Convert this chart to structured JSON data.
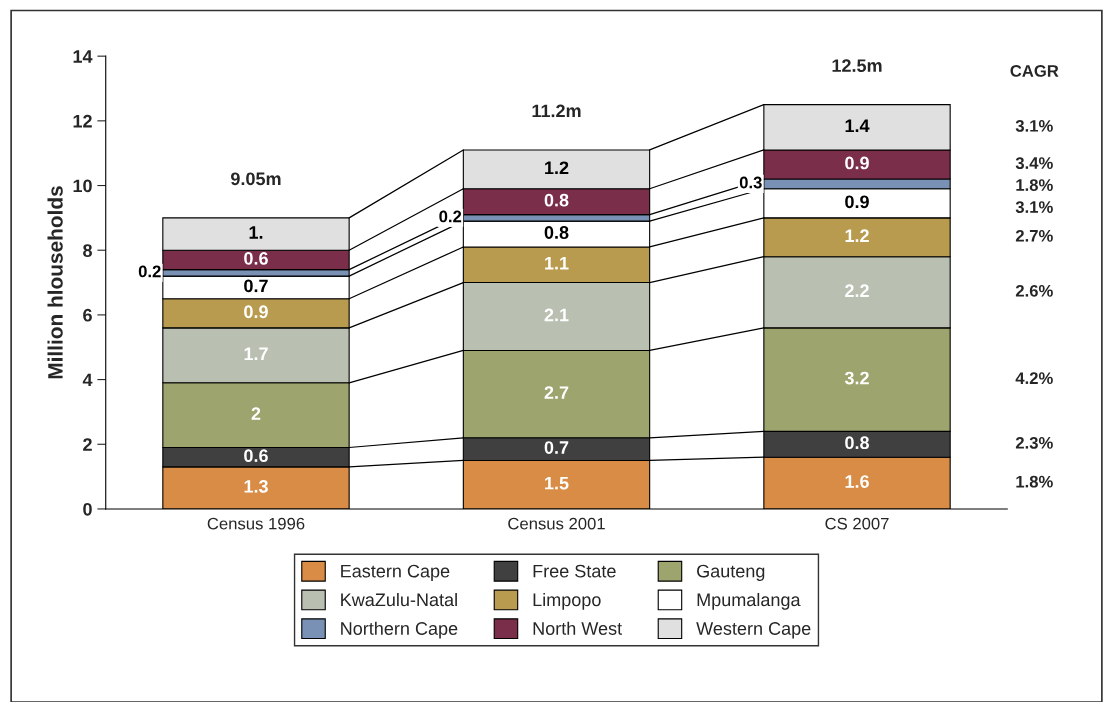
{
  "chart_data": {
    "type": "bar",
    "stacked": true,
    "ylabel": "Million hlouseholds",
    "categories": [
      "Census 1996",
      "Census 2001",
      "CS 2007"
    ],
    "ylim": [
      0,
      14
    ],
    "yticks": [
      0,
      2,
      4,
      6,
      8,
      10,
      12,
      14
    ],
    "grid": false,
    "legend": "bottom",
    "series": [
      {
        "name": "Eastern Cape",
        "color": "#d98c45",
        "values": [
          1.3,
          1.5,
          1.6
        ],
        "value_labels": [
          "1.3",
          "1.5",
          "1.6"
        ]
      },
      {
        "name": "Free State",
        "color": "#404040",
        "values": [
          0.6,
          0.7,
          0.8
        ],
        "value_labels": [
          "0.6",
          "0.7",
          "0.8"
        ]
      },
      {
        "name": "Gauteng",
        "color": "#9ea46e",
        "values": [
          2,
          2.7,
          3.2
        ],
        "value_labels": [
          "2",
          "2.7",
          "3.2"
        ]
      },
      {
        "name": "KwaZulu-Natal",
        "color": "#b9bfb1",
        "values": [
          1.7,
          2.1,
          2.2
        ],
        "value_labels": [
          "1.7",
          "2.1",
          "2.2"
        ]
      },
      {
        "name": "Limpopo",
        "color": "#b89b4e",
        "values": [
          0.9,
          1.1,
          1.2
        ],
        "value_labels": [
          "0.9",
          "1.1",
          "1.2"
        ]
      },
      {
        "name": "Mpumalanga",
        "color": "#ffffff",
        "values": [
          0.7,
          0.8,
          0.9
        ],
        "value_labels": [
          "0.7",
          "0.8",
          "0.9"
        ]
      },
      {
        "name": "Northern Cape",
        "color": "#7891b5",
        "values": [
          0.2,
          0.2,
          0.3
        ],
        "value_labels": [
          "0.2",
          "0.2",
          "0.3"
        ]
      },
      {
        "name": "North West",
        "color": "#7b2e4a",
        "values": [
          0.6,
          0.8,
          0.9
        ],
        "value_labels": [
          "0.6",
          "0.8",
          "0.9"
        ]
      },
      {
        "name": "Western Cape",
        "color": "#e0e0e0",
        "values": [
          1.0,
          1.2,
          1.4
        ],
        "value_labels": [
          "1.",
          "1.2",
          "1.4"
        ]
      }
    ],
    "totals": [
      "9.05m",
      "11.2m",
      "12.5m"
    ],
    "annotations": [
      "CAGR",
      "3.1%",
      "3.4%",
      "1.8%",
      "3.1%",
      "2.7%",
      "2.6%",
      "4.2%",
      "2.3%",
      "1.8%"
    ]
  }
}
